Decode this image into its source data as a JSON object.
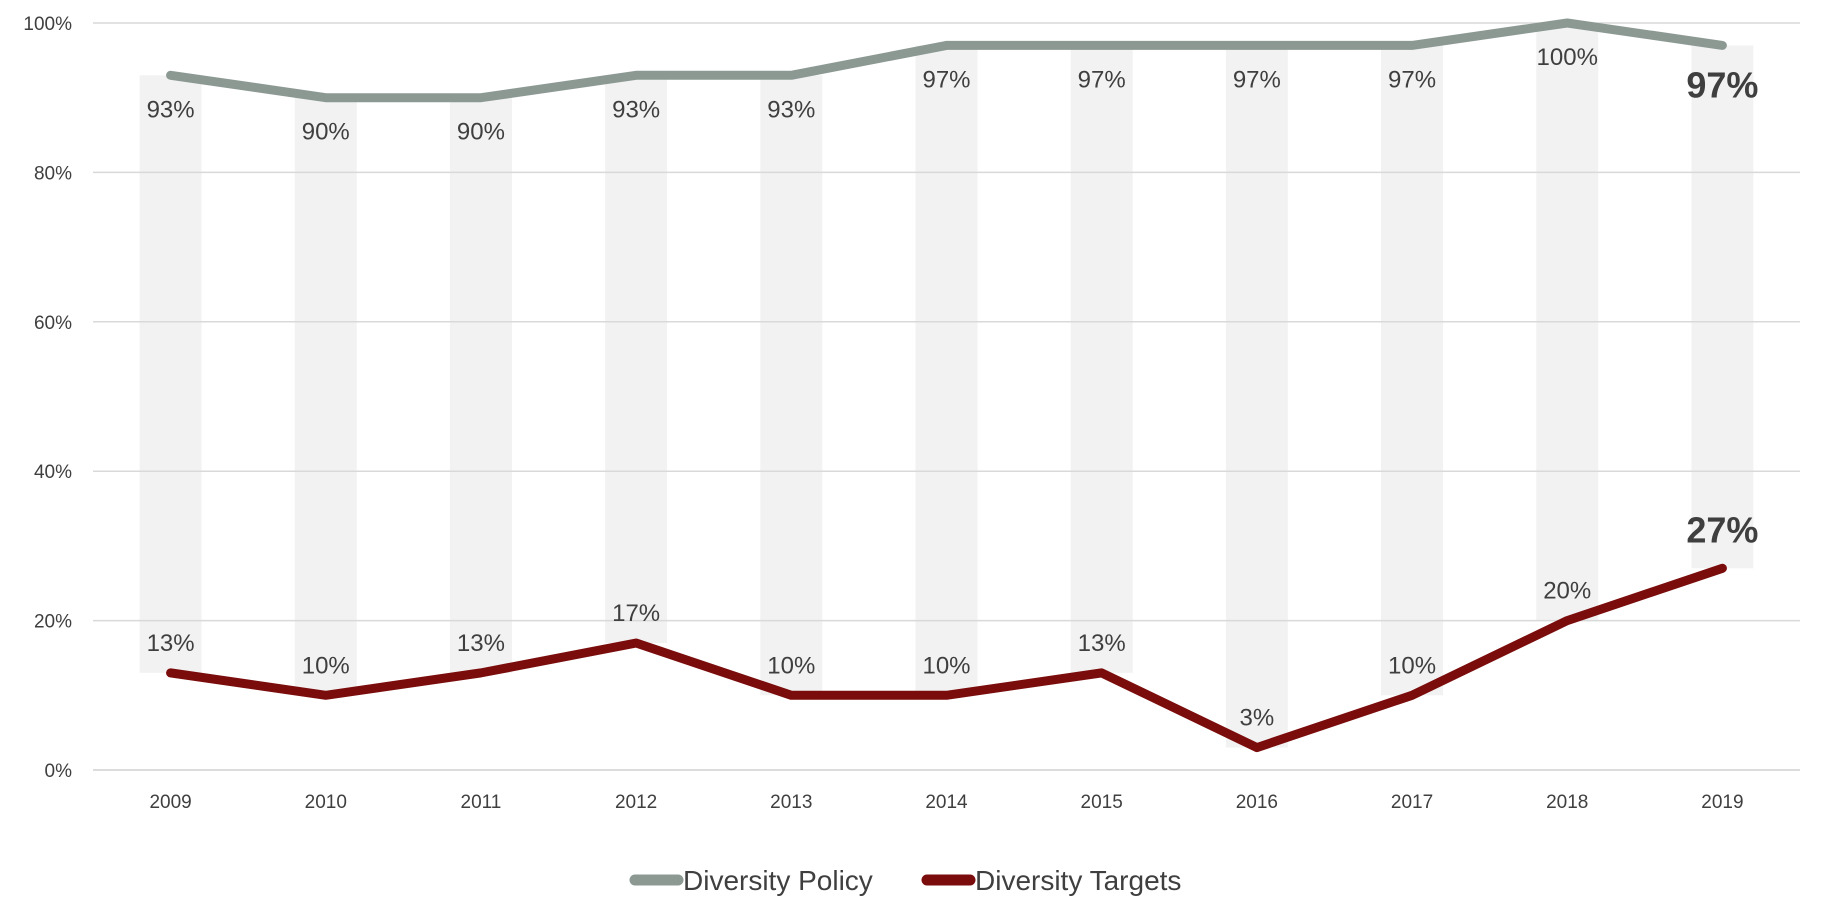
{
  "chart_data": {
    "type": "line",
    "categories": [
      "2009",
      "2010",
      "2011",
      "2012",
      "2013",
      "2014",
      "2015",
      "2016",
      "2017",
      "2018",
      "2019"
    ],
    "series": [
      {
        "name": "Diversity Policy",
        "values": [
          93,
          90,
          90,
          93,
          93,
          97,
          97,
          97,
          97,
          100,
          97
        ],
        "labels": [
          "93%",
          "90%",
          "90%",
          "93%",
          "93%",
          "97%",
          "97%",
          "97%",
          "97%",
          "100%",
          "97%"
        ],
        "color": "#8c9993",
        "label_position": "below"
      },
      {
        "name": "Diversity Targets",
        "values": [
          13,
          10,
          13,
          17,
          10,
          10,
          13,
          3,
          10,
          20,
          27
        ],
        "labels": [
          "13%",
          "10%",
          "13%",
          "17%",
          "10%",
          "10%",
          "13%",
          "3%",
          "10%",
          "20%",
          "27%"
        ],
        "color": "#7b0c0c",
        "label_position": "above"
      }
    ],
    "y_ticks": [
      "0%",
      "20%",
      "40%",
      "60%",
      "80%",
      "100%"
    ],
    "ylim": [
      0,
      100
    ],
    "gap_band_color": "#f2f2f2",
    "grid": true,
    "legend": "bottom",
    "emphasized_last_point": true
  }
}
